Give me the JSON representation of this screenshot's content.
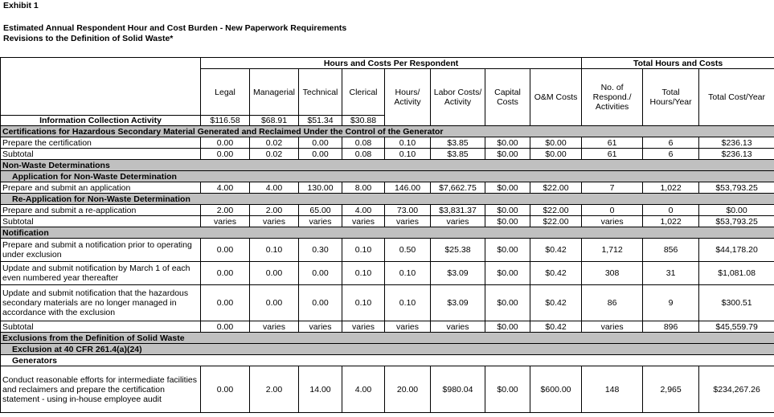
{
  "exhibit": "Exhibit 1",
  "title": "Estimated Annual Respondent Hour and Cost Burden - New Paperwork Requirements",
  "subtitle": "Revisions to the Definition of Solid Waste*",
  "header": {
    "group1": "Hours and Costs Per Respondent",
    "group2": "Total Hours and Costs",
    "activity": "Information Collection Activity",
    "columns": [
      "Legal",
      "Managerial",
      "Technical",
      "Clerical",
      "Hours/ Activity",
      "Labor Costs/ Activity",
      "Capital Costs",
      "O&M Costs",
      "No. of Respond./ Activities",
      "Total Hours/Year",
      "Total Cost/Year"
    ],
    "rates": [
      "$116.58",
      "$68.91",
      "$51.34",
      "$30.88"
    ]
  },
  "rows": [
    {
      "type": "section",
      "label": "Certifications for Hazardous Secondary Material Generated and Reclaimed Under the Control of the Generator"
    },
    {
      "type": "data",
      "label": "Prepare the certification",
      "values": [
        "0.00",
        "0.02",
        "0.00",
        "0.08",
        "0.10",
        "$3.85",
        "$0.00",
        "$0.00",
        "61",
        "6",
        "$236.13"
      ]
    },
    {
      "type": "data",
      "label": "Subtotal",
      "values": [
        "0.00",
        "0.02",
        "0.00",
        "0.08",
        "0.10",
        "$3.85",
        "$0.00",
        "$0.00",
        "61",
        "6",
        "$236.13"
      ]
    },
    {
      "type": "section",
      "label": "Non-Waste Determinations"
    },
    {
      "type": "subsection",
      "label": "Application for Non-Waste Determination"
    },
    {
      "type": "data",
      "label": "Prepare and submit an application",
      "values": [
        "4.00",
        "4.00",
        "130.00",
        "8.00",
        "146.00",
        "$7,662.75",
        "$0.00",
        "$22.00",
        "7",
        "1,022",
        "$53,793.25"
      ]
    },
    {
      "type": "subsection",
      "label": "Re-Application for Non-Waste Determination"
    },
    {
      "type": "data",
      "label": "Prepare and submit a re-application",
      "values": [
        "2.00",
        "2.00",
        "65.00",
        "4.00",
        "73.00",
        "$3,831.37",
        "$0.00",
        "$22.00",
        "0",
        "0",
        "$0.00"
      ]
    },
    {
      "type": "data",
      "label": "Subtotal",
      "values": [
        "varies",
        "varies",
        "varies",
        "varies",
        "varies",
        "varies",
        "$0.00",
        "$22.00",
        "varies",
        "1,022",
        "$53,793.25"
      ]
    },
    {
      "type": "section",
      "label": "Notification"
    },
    {
      "type": "data",
      "h": 29,
      "label": "Prepare and submit a notification prior to operating under exclusion",
      "values": [
        "0.00",
        "0.10",
        "0.30",
        "0.10",
        "0.50",
        "$25.38",
        "$0.00",
        "$0.42",
        "1,712",
        "856",
        "$44,178.20"
      ]
    },
    {
      "type": "data",
      "h": 29,
      "label": "Update and submit notification by March 1 of each even numbered year thereafter",
      "values": [
        "0.00",
        "0.00",
        "0.00",
        "0.10",
        "0.10",
        "$3.09",
        "$0.00",
        "$0.42",
        "308",
        "31",
        "$1,081.08"
      ]
    },
    {
      "type": "data",
      "h": 45,
      "label": "Update and submit notification that the hazardous secondary materials are no longer managed in accordance with the exclusion",
      "values": [
        "0.00",
        "0.00",
        "0.00",
        "0.10",
        "0.10",
        "$3.09",
        "$0.00",
        "$0.42",
        "86",
        "9",
        "$300.51"
      ]
    },
    {
      "type": "data",
      "label": "Subtotal",
      "values": [
        "0.00",
        "varies",
        "varies",
        "varies",
        "varies",
        "varies",
        "$0.00",
        "$0.42",
        "varies",
        "896",
        "$45,559.79"
      ]
    },
    {
      "type": "section",
      "label": "Exclusions from the Definition of Solid Waste"
    },
    {
      "type": "subsection",
      "label": "Exclusion at 40 CFR 261.4(a)(24)"
    },
    {
      "type": "plain",
      "label": "Generators"
    },
    {
      "type": "data",
      "h": 58,
      "label": "Conduct reasonable efforts for intermediate facilities and reclaimers and prepare the certification statement - using in-house employee audit",
      "values": [
        "0.00",
        "2.00",
        "14.00",
        "4.00",
        "20.00",
        "$980.04",
        "$0.00",
        "$600.00",
        "148",
        "2,965",
        "$234,267.26"
      ]
    }
  ]
}
